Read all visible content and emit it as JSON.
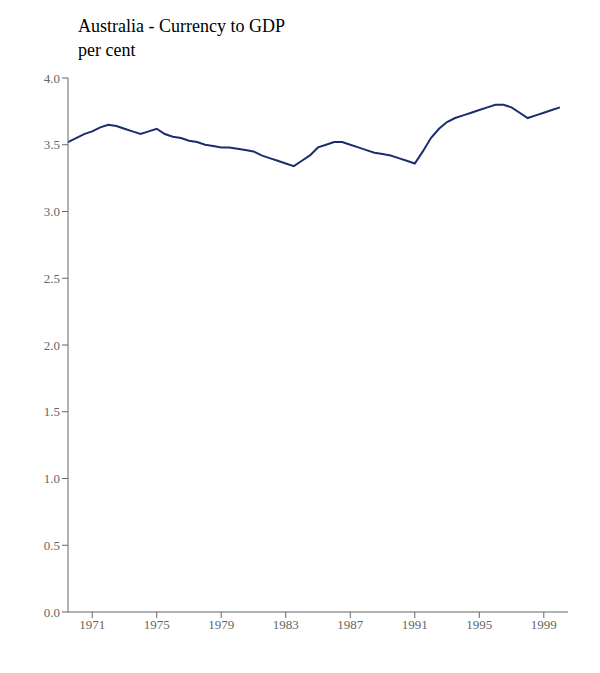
{
  "chart_data": {
    "type": "line",
    "title": "Australia - Currency to GDP",
    "subtitle": "per cent",
    "color": "#1a2e6e",
    "grid": false,
    "xlim": [
      1969.5,
      2000.5
    ],
    "xticks": [
      1971,
      1975,
      1979,
      1983,
      1987,
      1991,
      1995,
      1999
    ],
    "ylim": [
      0,
      4.0
    ],
    "yticks": [
      {
        "value": 0,
        "label": "0.0"
      },
      0.5,
      {
        "value": 1,
        "label": "1.0"
      },
      1.5,
      {
        "value": 2,
        "label": "2.0"
      },
      2.5,
      {
        "value": 3,
        "label": "3.0"
      },
      3.5,
      {
        "value": 4,
        "label": "4.0"
      }
    ],
    "x": [
      1969.5,
      1970.0,
      1970.5,
      1971.0,
      1971.5,
      1972.0,
      1972.5,
      1973.0,
      1973.5,
      1974.0,
      1974.5,
      1975.0,
      1975.5,
      1976.0,
      1976.5,
      1977.0,
      1977.5,
      1978.0,
      1978.5,
      1979.0,
      1979.5,
      1980.0,
      1980.5,
      1981.0,
      1981.5,
      1982.0,
      1982.5,
      1983.0,
      1983.5,
      1984.0,
      1984.5,
      1985.0,
      1985.5,
      1986.0,
      1986.5,
      1987.0,
      1987.5,
      1988.0,
      1988.5,
      1989.0,
      1989.5,
      1990.0,
      1990.5,
      1991.0,
      1991.5,
      1992.0,
      1992.5,
      1993.0,
      1993.5,
      1994.0,
      1994.5,
      1995.0,
      1995.5,
      1996.0,
      1996.5,
      1997.0,
      1997.5,
      1998.0,
      1998.5,
      1999.0,
      1999.5,
      2000.0
    ],
    "values": [
      3.52,
      3.55,
      3.58,
      3.6,
      3.63,
      3.65,
      3.64,
      3.62,
      3.6,
      3.58,
      3.6,
      3.62,
      3.58,
      3.56,
      3.55,
      3.53,
      3.52,
      3.5,
      3.49,
      3.48,
      3.48,
      3.47,
      3.46,
      3.45,
      3.42,
      3.4,
      3.38,
      3.36,
      3.34,
      3.38,
      3.42,
      3.48,
      3.5,
      3.52,
      3.52,
      3.5,
      3.48,
      3.46,
      3.44,
      3.43,
      3.42,
      3.4,
      3.38,
      3.36,
      3.45,
      3.55,
      3.62,
      3.67,
      3.7,
      3.72,
      3.74,
      3.76,
      3.78,
      3.8,
      3.8,
      3.78,
      3.74,
      3.7,
      3.72,
      3.74,
      3.76,
      3.78
    ]
  }
}
